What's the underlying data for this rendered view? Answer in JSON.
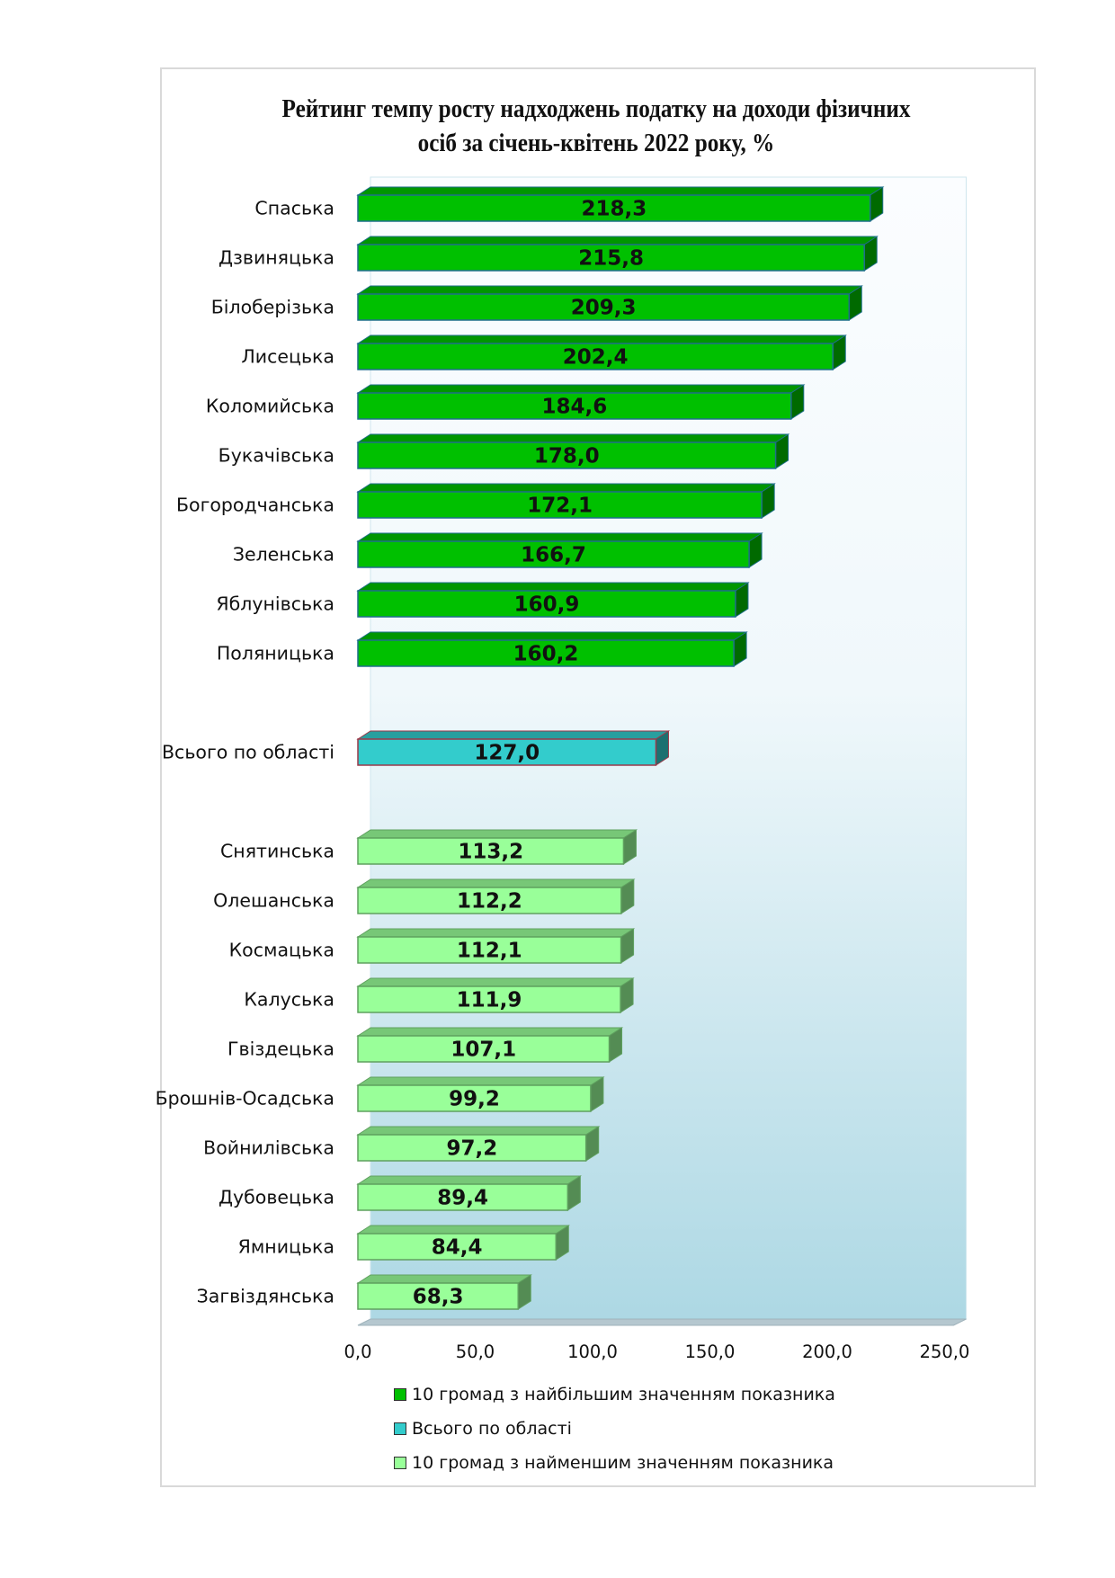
{
  "chart_data": {
    "type": "bar",
    "orientation": "horizontal",
    "title_lines": [
      "Рейтинг темпу росту надходжень податку на доходи фізичних",
      "осіб  за січень-квітень 2022 року, %"
    ],
    "xlim": [
      0,
      250
    ],
    "x_ticks": [
      "0,0",
      "50,0",
      "100,0",
      "150,0",
      "200,0",
      "250,0"
    ],
    "legend_placement": "bottom",
    "grid": false,
    "series": [
      {
        "name": "10 громад з найбільшим значенням показника",
        "color": "#00c000",
        "categories": [
          "Спаська",
          "Дзвиняцька",
          "Білоберізька",
          "Лисецька",
          "Коломийська",
          "Букачівська",
          "Богородчанська",
          "Зеленська",
          "Яблунівська",
          "Поляницька"
        ],
        "values": [
          218.3,
          215.8,
          209.3,
          202.4,
          184.6,
          178.0,
          172.1,
          166.7,
          160.9,
          160.2
        ],
        "value_labels": [
          "218,3",
          "215,8",
          "209,3",
          "202,4",
          "184,6",
          "178,0",
          "172,1",
          "166,7",
          "160,9",
          "160,2"
        ]
      },
      {
        "name": "Всього по області",
        "color": "#33cccc",
        "categories": [
          "Всього по області"
        ],
        "values": [
          127.0
        ],
        "value_labels": [
          "127,0"
        ]
      },
      {
        "name": "10 громад з найменшим значенням показника",
        "color": "#99ff99",
        "categories": [
          "Снятинська",
          "Олешанська",
          "Космацька",
          "Калуська",
          "Гвіздецька",
          "Брошнів-Осадська",
          "Войнилівська",
          "Дубовецька",
          "Ямницька",
          "Загвіздянська"
        ],
        "values": [
          113.2,
          112.2,
          112.1,
          111.9,
          107.1,
          99.2,
          97.2,
          89.4,
          84.4,
          68.3
        ],
        "value_labels": [
          "113,2",
          "112,2",
          "112,1",
          "111,9",
          "107,1",
          "99,2",
          "97,2",
          "89,4",
          "84,4",
          "68,3"
        ]
      }
    ]
  }
}
